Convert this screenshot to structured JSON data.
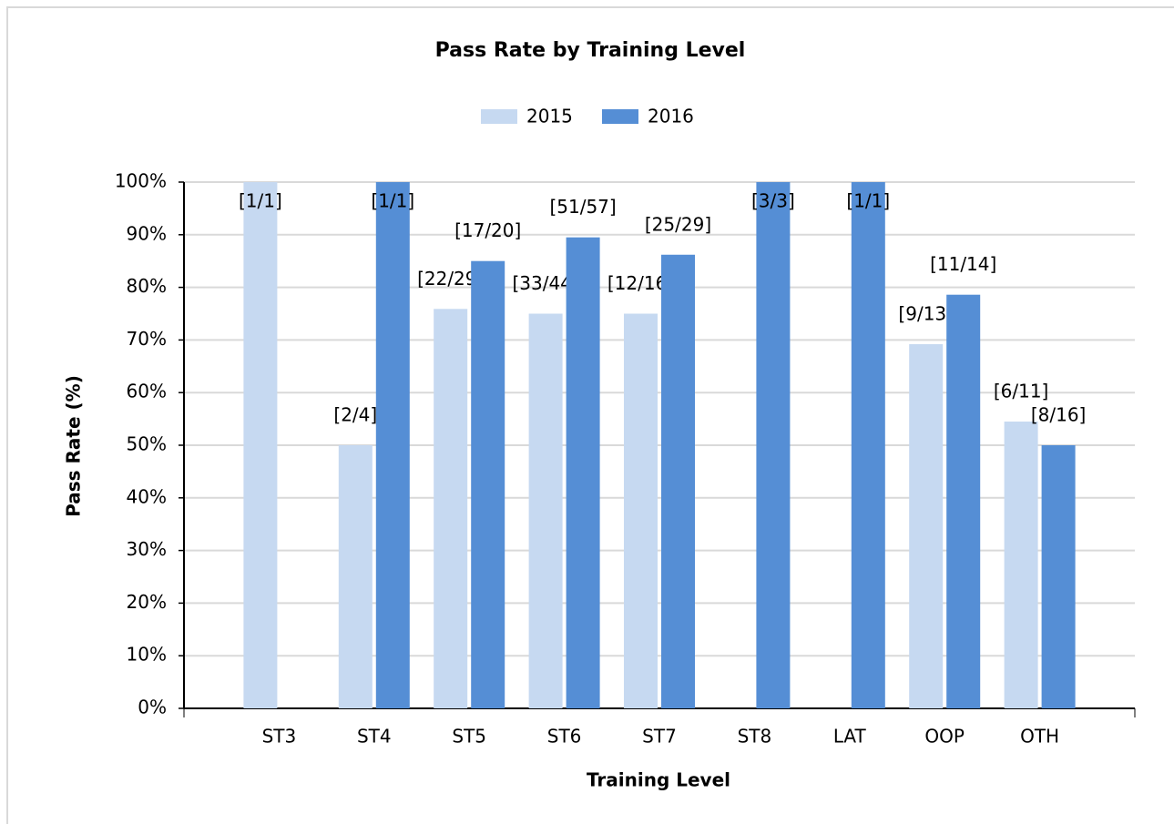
{
  "chart_data": {
    "type": "bar",
    "title": "Pass Rate by Training Level",
    "x_label": "Training Level",
    "y_label": "Pass Rate (%)",
    "categories": [
      "ST3",
      "ST4",
      "ST5",
      "ST6",
      "ST7",
      "ST8",
      "LAT",
      "OOP",
      "OTH"
    ],
    "series": [
      {
        "name": "2015",
        "color": "#c6d9f1",
        "values": [
          100,
          50,
          75.9,
          75,
          75,
          null,
          null,
          69.2,
          54.5
        ],
        "value_labels": [
          "[1/1]",
          "[2/4]",
          "[22/29]",
          "[33/44]",
          "[12/16]",
          null,
          null,
          "[9/13]",
          "[6/11]"
        ]
      },
      {
        "name": "2016",
        "color": "#558ed5",
        "values": [
          null,
          100,
          85,
          89.5,
          86.2,
          100,
          100,
          78.6,
          50
        ],
        "value_labels": [
          null,
          "[1/1]",
          "[17/20]",
          "[51/57]",
          "[25/29]",
          "[3/3]",
          "[1/1]",
          "[11/14]",
          "[8/16]"
        ]
      }
    ],
    "ylim": [
      0,
      100
    ],
    "yticks": [
      {
        "value": 0,
        "label": "0%"
      },
      {
        "value": 10,
        "label": "10%"
      },
      {
        "value": 20,
        "label": "20%"
      },
      {
        "value": 30,
        "label": "30%"
      },
      {
        "value": 40,
        "label": "40%"
      },
      {
        "value": 50,
        "label": "50%"
      },
      {
        "value": 60,
        "label": "60%"
      },
      {
        "value": 70,
        "label": "70%"
      },
      {
        "value": 80,
        "label": "80%"
      },
      {
        "value": 90,
        "label": "90%"
      },
      {
        "value": 100,
        "label": "100%"
      }
    ],
    "grid": true,
    "legend": "top"
  }
}
